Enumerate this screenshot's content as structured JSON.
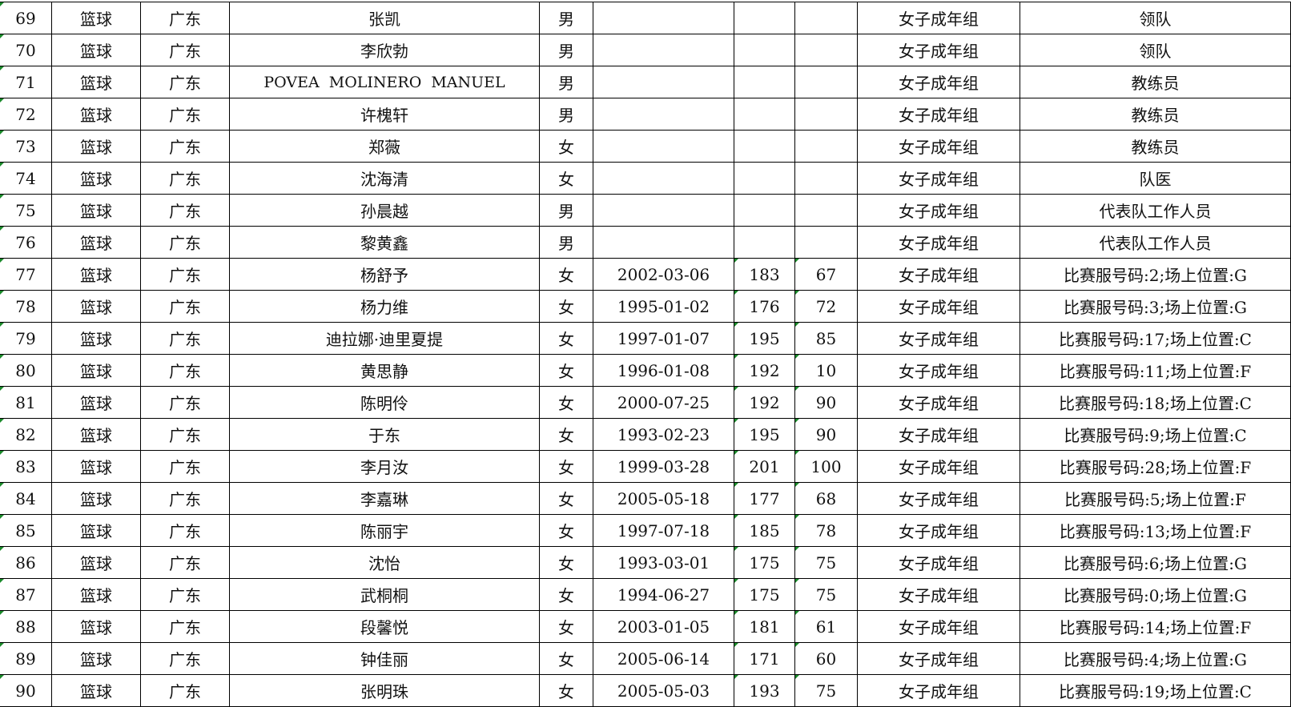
{
  "rows": [
    [
      "69",
      "篮球",
      "广东",
      "张凯",
      "男",
      "",
      "",
      "",
      "女子成年组",
      "领队"
    ],
    [
      "70",
      "篮球",
      "广东",
      "李欣勃",
      "男",
      "",
      "",
      "",
      "女子成年组",
      "领队"
    ],
    [
      "71",
      "篮球",
      "广东",
      "POVEA  MOLINERO  MANUEL",
      "男",
      "",
      "",
      "",
      "女子成年组",
      "教练员"
    ],
    [
      "72",
      "篮球",
      "广东",
      "许槐轩",
      "男",
      "",
      "",
      "",
      "女子成年组",
      "教练员"
    ],
    [
      "73",
      "篮球",
      "广东",
      "郑薇",
      "女",
      "",
      "",
      "",
      "女子成年组",
      "教练员"
    ],
    [
      "74",
      "篮球",
      "广东",
      "沈海清",
      "女",
      "",
      "",
      "",
      "女子成年组",
      "队医"
    ],
    [
      "75",
      "篮球",
      "广东",
      "孙晨越",
      "男",
      "",
      "",
      "",
      "女子成年组",
      "代表队工作人员"
    ],
    [
      "76",
      "篮球",
      "广东",
      "黎黄鑫",
      "男",
      "",
      "",
      "",
      "女子成年组",
      "代表队工作人员"
    ],
    [
      "77",
      "篮球",
      "广东",
      "杨舒予",
      "女",
      "2002-03-06",
      "183",
      "67",
      "女子成年组",
      "比赛服号码:2;场上位置:G"
    ],
    [
      "78",
      "篮球",
      "广东",
      "杨力维",
      "女",
      "1995-01-02",
      "176",
      "72",
      "女子成年组",
      "比赛服号码:3;场上位置:G"
    ],
    [
      "79",
      "篮球",
      "广东",
      "迪拉娜·迪里夏提",
      "女",
      "1997-01-07",
      "195",
      "85",
      "女子成年组",
      "比赛服号码:17;场上位置:C"
    ],
    [
      "80",
      "篮球",
      "广东",
      "黄思静",
      "女",
      "1996-01-08",
      "192",
      "10",
      "女子成年组",
      "比赛服号码:11;场上位置:F"
    ],
    [
      "81",
      "篮球",
      "广东",
      "陈明伶",
      "女",
      "2000-07-25",
      "192",
      "90",
      "女子成年组",
      "比赛服号码:18;场上位置:C"
    ],
    [
      "82",
      "篮球",
      "广东",
      "于东",
      "女",
      "1993-02-23",
      "195",
      "90",
      "女子成年组",
      "比赛服号码:9;场上位置:C"
    ],
    [
      "83",
      "篮球",
      "广东",
      "李月汝",
      "女",
      "1999-03-28",
      "201",
      "100",
      "女子成年组",
      "比赛服号码:28;场上位置:F"
    ],
    [
      "84",
      "篮球",
      "广东",
      "李嘉琳",
      "女",
      "2005-05-18",
      "177",
      "68",
      "女子成年组",
      "比赛服号码:5;场上位置:F"
    ],
    [
      "85",
      "篮球",
      "广东",
      "陈丽宇",
      "女",
      "1997-07-18",
      "185",
      "78",
      "女子成年组",
      "比赛服号码:13;场上位置:F"
    ],
    [
      "86",
      "篮球",
      "广东",
      "沈怡",
      "女",
      "1993-03-01",
      "175",
      "75",
      "女子成年组",
      "比赛服号码:6;场上位置:G"
    ],
    [
      "87",
      "篮球",
      "广东",
      "武桐桐",
      "女",
      "1994-06-27",
      "175",
      "75",
      "女子成年组",
      "比赛服号码:0;场上位置:G"
    ],
    [
      "88",
      "篮球",
      "广东",
      "段馨悦",
      "女",
      "2003-01-05",
      "181",
      "61",
      "女子成年组",
      "比赛服号码:14;场上位置:F"
    ],
    [
      "89",
      "篮球",
      "广东",
      "钟佳丽",
      "女",
      "2005-06-14",
      "171",
      "60",
      "女子成年组",
      "比赛服号码:4;场上位置:G"
    ],
    [
      "90",
      "篮球",
      "广东",
      "张明珠",
      "女",
      "2005-05-03",
      "193",
      "75",
      "女子成年组",
      "比赛服号码:19;场上位置:C"
    ]
  ],
  "colors": {
    "text_number_marker": "#1a8a2a",
    "grid": "#000000"
  }
}
